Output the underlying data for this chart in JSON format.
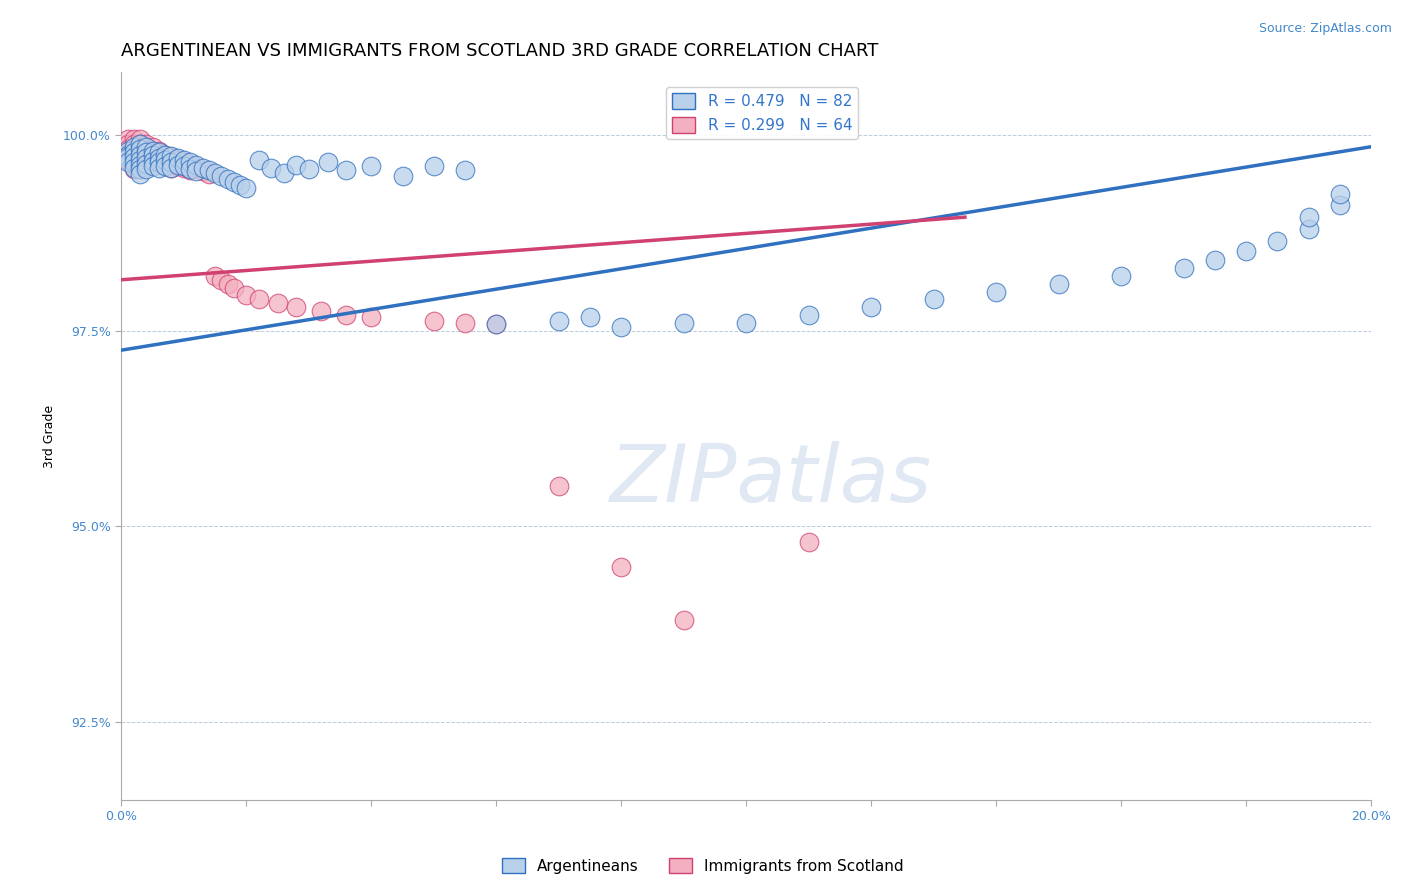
{
  "title": "ARGENTINEAN VS IMMIGRANTS FROM SCOTLAND 3RD GRADE CORRELATION CHART",
  "source_text": "Source: ZipAtlas.com",
  "ylabel": "3rd Grade",
  "xlim": [
    0.0,
    0.2
  ],
  "ylim": [
    0.915,
    1.008
  ],
  "xticks": [
    0.0,
    0.02,
    0.04,
    0.06,
    0.08,
    0.1,
    0.12,
    0.14,
    0.16,
    0.18,
    0.2
  ],
  "yticks": [
    0.925,
    0.95,
    0.975,
    1.0
  ],
  "yticklabels": [
    "92.5%",
    "95.0%",
    "97.5%",
    "100.0%"
  ],
  "blue_R": 0.479,
  "blue_N": 82,
  "pink_R": 0.299,
  "pink_N": 64,
  "blue_fill": "#b8d0ea",
  "blue_edge": "#3070c0",
  "pink_fill": "#f4b0c0",
  "pink_edge": "#d04070",
  "blue_line": "#3070c0",
  "pink_line": "#d04070",
  "title_fontsize": 13,
  "axis_label_fontsize": 9,
  "tick_fontsize": 9,
  "legend_fontsize": 11,
  "blue_trend_x": [
    0.0,
    0.2
  ],
  "blue_trend_y": [
    0.9725,
    0.9985
  ],
  "pink_trend_x": [
    0.0,
    0.135
  ],
  "pink_trend_y": [
    0.9815,
    0.9895
  ],
  "blue_x": [
    0.001,
    0.001,
    0.001,
    0.001,
    0.002,
    0.002,
    0.002,
    0.002,
    0.002,
    0.003,
    0.003,
    0.003,
    0.003,
    0.003,
    0.003,
    0.003,
    0.004,
    0.004,
    0.004,
    0.004,
    0.004,
    0.005,
    0.005,
    0.005,
    0.005,
    0.006,
    0.006,
    0.006,
    0.006,
    0.007,
    0.007,
    0.007,
    0.008,
    0.008,
    0.008,
    0.009,
    0.009,
    0.01,
    0.01,
    0.011,
    0.011,
    0.012,
    0.012,
    0.013,
    0.014,
    0.015,
    0.016,
    0.017,
    0.018,
    0.019,
    0.02,
    0.022,
    0.024,
    0.026,
    0.028,
    0.03,
    0.033,
    0.036,
    0.04,
    0.045,
    0.05,
    0.055,
    0.06,
    0.07,
    0.075,
    0.08,
    0.09,
    0.1,
    0.11,
    0.12,
    0.13,
    0.14,
    0.15,
    0.16,
    0.17,
    0.175,
    0.18,
    0.185,
    0.19,
    0.19,
    0.195,
    0.195
  ],
  "blue_y": [
    0.998,
    0.9975,
    0.9972,
    0.9965,
    0.9985,
    0.9978,
    0.9972,
    0.9965,
    0.9958,
    0.9988,
    0.9982,
    0.9975,
    0.9968,
    0.9962,
    0.9956,
    0.995,
    0.9985,
    0.9978,
    0.997,
    0.9963,
    0.9956,
    0.998,
    0.9974,
    0.9967,
    0.996,
    0.9978,
    0.9971,
    0.9965,
    0.9958,
    0.9975,
    0.9968,
    0.996,
    0.9973,
    0.9966,
    0.9958,
    0.997,
    0.9962,
    0.9968,
    0.996,
    0.9965,
    0.9957,
    0.9962,
    0.9954,
    0.9958,
    0.9955,
    0.9952,
    0.9948,
    0.9944,
    0.994,
    0.9936,
    0.9932,
    0.9968,
    0.9958,
    0.9952,
    0.9962,
    0.9956,
    0.9966,
    0.9955,
    0.996,
    0.9948,
    0.996,
    0.9955,
    0.9758,
    0.9762,
    0.9768,
    0.9755,
    0.976,
    0.976,
    0.977,
    0.978,
    0.979,
    0.98,
    0.981,
    0.982,
    0.983,
    0.984,
    0.9852,
    0.9865,
    0.988,
    0.9895,
    0.991,
    0.9925
  ],
  "pink_x": [
    0.001,
    0.001,
    0.001,
    0.001,
    0.001,
    0.002,
    0.002,
    0.002,
    0.002,
    0.002,
    0.002,
    0.002,
    0.003,
    0.003,
    0.003,
    0.003,
    0.003,
    0.003,
    0.003,
    0.004,
    0.004,
    0.004,
    0.004,
    0.004,
    0.005,
    0.005,
    0.005,
    0.005,
    0.006,
    0.006,
    0.006,
    0.007,
    0.007,
    0.007,
    0.008,
    0.008,
    0.008,
    0.009,
    0.009,
    0.01,
    0.01,
    0.011,
    0.011,
    0.012,
    0.013,
    0.014,
    0.015,
    0.016,
    0.017,
    0.018,
    0.02,
    0.022,
    0.025,
    0.028,
    0.032,
    0.036,
    0.04,
    0.05,
    0.055,
    0.06,
    0.07,
    0.08,
    0.09,
    0.11
  ],
  "pink_y": [
    0.9995,
    0.9988,
    0.9982,
    0.9975,
    0.9968,
    0.9995,
    0.9988,
    0.9982,
    0.9975,
    0.9968,
    0.9962,
    0.9956,
    0.9995,
    0.9988,
    0.9982,
    0.9975,
    0.9968,
    0.9962,
    0.9956,
    0.9988,
    0.9982,
    0.9975,
    0.9968,
    0.9962,
    0.9985,
    0.9978,
    0.9972,
    0.9965,
    0.998,
    0.9974,
    0.9967,
    0.9975,
    0.9968,
    0.9962,
    0.9972,
    0.9965,
    0.9958,
    0.9968,
    0.996,
    0.9965,
    0.9958,
    0.9962,
    0.9955,
    0.9958,
    0.9954,
    0.995,
    0.982,
    0.9815,
    0.981,
    0.9805,
    0.9795,
    0.979,
    0.9785,
    0.978,
    0.9775,
    0.977,
    0.9768,
    0.9762,
    0.976,
    0.9758,
    0.9552,
    0.9448,
    0.938,
    0.948
  ]
}
